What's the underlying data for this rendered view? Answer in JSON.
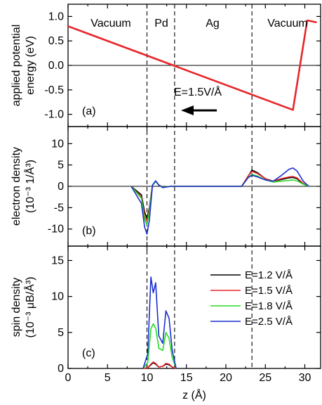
{
  "chart_data": [
    {
      "type": "line",
      "panel_label": "(a)",
      "ylabel": "applied potential energy (eV)",
      "ylabel_lines": [
        "applied potential",
        "energy (eV)"
      ],
      "xlim": [
        0,
        32
      ],
      "ylim": [
        -1.25,
        1.25
      ],
      "yticks": [
        "1.0",
        "0.5",
        "0.0",
        "-0.5",
        "-1.0"
      ],
      "region_labels": [
        "Vacuum",
        "Pd",
        "Ag",
        "Vacuum"
      ],
      "annotation": "E=1.5V/Å",
      "series": [
        {
          "color": "#e8262b",
          "x": [
            0,
            28.5,
            30.3,
            31.5
          ],
          "y": [
            0.8,
            -0.91,
            0.92,
            0.88
          ]
        }
      ]
    },
    {
      "type": "line",
      "panel_label": "(b)",
      "ylabel": "electron density (10⁻³ 1/Å³)",
      "ylabel_lines": [
        "electron density",
        "(10⁻³ 1/Å³)"
      ],
      "xlim": [
        0,
        32
      ],
      "ylim": [
        -14,
        14
      ],
      "yticks": [
        "10",
        "5",
        "0",
        "-5",
        "-10"
      ],
      "series": [
        {
          "color": "#000000",
          "x": [
            8,
            9.3,
            9.7,
            10.0,
            10.3,
            10.7,
            11.1,
            11.5,
            12,
            13,
            22,
            22.8,
            23.3,
            24,
            25,
            26,
            27,
            28,
            28.5,
            29,
            29.8,
            30.5
          ],
          "y": [
            0,
            -2,
            -6,
            -7.5,
            -5,
            0.3,
            1.2,
            0.3,
            -0.2,
            0,
            0,
            2.3,
            3.8,
            3.2,
            1.8,
            1.2,
            1.6,
            2.0,
            2.1,
            1.8,
            0.6,
            0
          ]
        },
        {
          "color": "#e8262b",
          "x": [
            8,
            9.3,
            9.7,
            10.0,
            10.3,
            10.7,
            11.1,
            11.5,
            12,
            13,
            22,
            22.8,
            23.3,
            24,
            25,
            26,
            27,
            28,
            28.5,
            29,
            29.8,
            30.5
          ],
          "y": [
            0,
            -2.5,
            -7,
            -8.2,
            -5.5,
            0.3,
            1.2,
            0.3,
            -0.2,
            0,
            0,
            2.4,
            3.5,
            3.0,
            1.8,
            1.2,
            1.8,
            2.2,
            2.3,
            2.0,
            0.7,
            0
          ]
        },
        {
          "color": "#22dd22",
          "x": [
            8,
            9.3,
            9.7,
            10.0,
            10.3,
            10.7,
            11.1,
            11.5,
            12,
            13,
            22,
            22.8,
            23.3,
            24,
            25,
            26,
            27,
            28,
            28.5,
            29,
            29.8,
            30.5
          ],
          "y": [
            0,
            -2.8,
            -7.8,
            -9.0,
            -6,
            0.2,
            1.1,
            0.3,
            -0.2,
            0,
            0,
            2.0,
            2.8,
            2.4,
            1.5,
            1.0,
            1.2,
            1.4,
            1.5,
            1.3,
            0.5,
            0
          ]
        },
        {
          "color": "#1a2fd0",
          "x": [
            8,
            9.3,
            9.7,
            10.0,
            10.3,
            10.7,
            11.1,
            11.5,
            12,
            13,
            22,
            22.8,
            23.3,
            24,
            25,
            26,
            27,
            28,
            28.5,
            29,
            29.8,
            30.5
          ],
          "y": [
            0,
            -4,
            -9.5,
            -11.2,
            -8,
            0.3,
            1.3,
            0.3,
            -0.3,
            0,
            0,
            2.0,
            2.6,
            2.2,
            1.5,
            1.2,
            2.5,
            4.0,
            4.3,
            3.6,
            1.2,
            0
          ]
        }
      ]
    },
    {
      "type": "line",
      "panel_label": "(c)",
      "ylabel": "spin density (10⁻³ μB/Å³)",
      "ylabel_lines": [
        "spin density",
        "(10⁻³ μB/Å³)"
      ],
      "xlabel": "z (Å)",
      "xlim": [
        0,
        32
      ],
      "ylim": [
        0,
        17
      ],
      "yticks": [
        "15",
        "10",
        "5",
        "0"
      ],
      "xticks": [
        "0",
        "5",
        "10",
        "15",
        "20",
        "25",
        "30"
      ],
      "legend_position": "top-right",
      "series": [
        {
          "name": "E=1.2 V/Å",
          "color": "#000000",
          "x": [
            9.5,
            10.1,
            10.5,
            10.8,
            11.1,
            11.5,
            12.0,
            12.4,
            12.8,
            13.2,
            13.7
          ],
          "y": [
            0,
            0.1,
            0.5,
            0.8,
            0.6,
            0.2,
            0.3,
            0.6,
            0.5,
            0.2,
            0
          ]
        },
        {
          "name": "E=1.5 V/Å",
          "color": "#e8262b",
          "x": [
            9.5,
            10.1,
            10.5,
            10.8,
            11.1,
            11.5,
            12.0,
            12.4,
            12.8,
            13.2,
            13.7
          ],
          "y": [
            0,
            0.1,
            0.6,
            0.9,
            0.7,
            0.2,
            0.3,
            0.7,
            0.6,
            0.2,
            0
          ]
        },
        {
          "name": "E=1.8 V/Å",
          "color": "#22dd22",
          "x": [
            9.5,
            10.1,
            10.5,
            10.8,
            11.1,
            11.5,
            12.0,
            12.4,
            12.8,
            13.2,
            13.7
          ],
          "y": [
            0,
            0.8,
            5.5,
            6.2,
            5.6,
            2.8,
            2.5,
            5.0,
            4.2,
            1.5,
            0
          ]
        },
        {
          "name": "E=2.5 V/Å",
          "color": "#1a2fd0",
          "x": [
            9.5,
            10.1,
            10.5,
            10.8,
            11.1,
            11.5,
            12.0,
            12.4,
            12.8,
            13.2,
            13.7
          ],
          "y": [
            0,
            2.0,
            12.7,
            10.5,
            11.9,
            4.5,
            3.5,
            8.0,
            7.0,
            2.5,
            0
          ]
        }
      ]
    }
  ],
  "divider_x": [
    10,
    13.5,
    23.3
  ]
}
